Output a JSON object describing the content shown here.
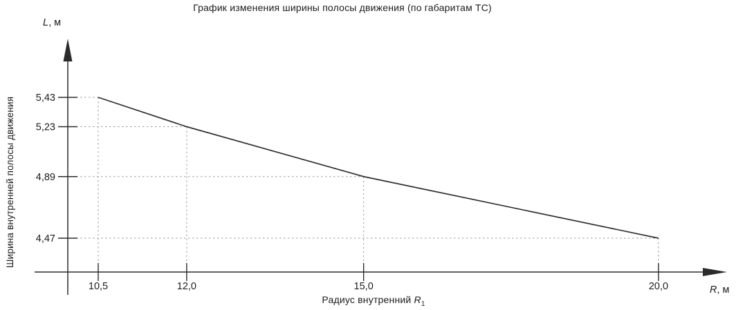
{
  "title": "График изменения ширины полосы движения (по габаритам ТС)",
  "axes": {
    "y_symbol": "L",
    "y_unit_suffix": ", м",
    "x_symbol": "R",
    "x_unit_suffix": ", м",
    "y_title": "Ширина внутренней полосы движения",
    "x_title_prefix": "Радиус внутренний ",
    "x_title_symbol": "R",
    "x_title_sub": "1"
  },
  "chart_data": {
    "type": "line",
    "x": [
      10.5,
      12.0,
      15.0,
      20.0
    ],
    "y": [
      5.43,
      5.23,
      4.89,
      4.47
    ],
    "x_tick_labels": [
      "10,5",
      "12,0",
      "15,0",
      "20,0"
    ],
    "y_tick_labels": [
      "5,43",
      "5,23",
      "4,89",
      "4,47"
    ],
    "title": "График изменения ширины полосы движения (по габаритам ТС)",
    "xlabel": "Радиус внутренний R1",
    "ylabel": "Ширина внутренней полосы движения",
    "x_axis_unit": "R, м",
    "y_axis_unit": "L, м",
    "xlim": [
      10.0,
      21.0
    ],
    "ylim": [
      4.2,
      5.7
    ],
    "grid": false,
    "legend": null,
    "guide_lines": "dashed from each data point to both axes",
    "line_color": "#2e2e2e",
    "dash_color": "#9b9b9b",
    "axis_color": "#2b2b2b",
    "background_color": "#ffffff"
  }
}
